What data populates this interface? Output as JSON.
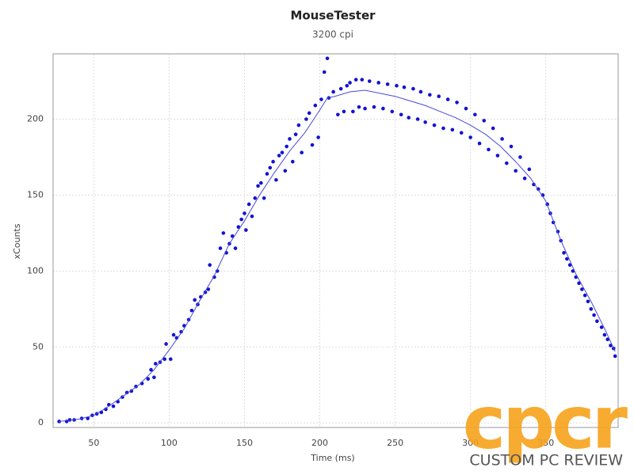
{
  "chart_data": {
    "type": "scatter",
    "title": "MouseTester",
    "subtitle": "3200 cpi",
    "x_label": "Time (ms)",
    "y_label": "xCounts",
    "xlim": [
      23,
      398
    ],
    "ylim": [
      -3,
      243
    ],
    "xticks": [
      50,
      100,
      150,
      200,
      250,
      300,
      350
    ],
    "yticks": [
      0,
      50,
      100,
      150,
      200
    ],
    "grid": true,
    "series": [
      {
        "type": "scatter",
        "color": "#1212d4",
        "x": [
          27,
          32,
          34,
          37,
          42,
          46,
          49,
          52,
          55,
          58,
          60,
          63,
          66,
          69,
          72,
          75,
          78,
          82,
          86,
          88,
          90,
          91,
          94,
          97,
          98,
          101,
          103,
          105,
          108,
          110,
          113,
          115,
          117,
          119,
          121,
          124,
          126,
          127,
          130,
          132,
          134,
          136,
          138,
          140,
          142,
          144,
          146,
          148,
          150,
          151,
          153,
          155,
          157,
          159,
          161,
          163,
          165,
          167,
          169,
          171,
          173,
          175,
          177,
          178,
          180,
          182,
          184,
          186,
          188,
          191,
          193,
          195,
          197,
          199,
          201,
          203,
          205,
          206,
          209,
          212,
          214,
          216,
          218,
          220,
          222,
          224,
          226,
          228,
          230,
          233,
          236,
          239,
          242,
          245,
          248,
          251,
          254,
          256,
          259,
          262,
          265,
          267,
          270,
          273,
          276,
          279,
          282,
          285,
          288,
          291,
          294,
          297,
          300,
          303,
          306,
          309,
          312,
          315,
          318,
          321,
          324,
          327,
          330,
          333,
          336,
          339,
          342,
          345,
          348,
          351,
          353,
          355,
          358,
          360,
          362,
          364,
          366,
          368,
          370,
          372,
          374,
          376,
          378,
          380,
          382,
          384,
          387,
          389,
          391,
          393,
          395,
          396
        ],
        "values": [
          1,
          1,
          2,
          2,
          3,
          3,
          5,
          6,
          7,
          9,
          12,
          11,
          14,
          17,
          20,
          21,
          24,
          26,
          29,
          35,
          30,
          39,
          40,
          42,
          52,
          42,
          58,
          56,
          60,
          64,
          68,
          74,
          81,
          78,
          83,
          86,
          88,
          104,
          96,
          100,
          115,
          125,
          112,
          118,
          123,
          115,
          129,
          134,
          138,
          127,
          144,
          136,
          148,
          156,
          158,
          148,
          164,
          168,
          172,
          160,
          176,
          178,
          166,
          182,
          187,
          172,
          190,
          196,
          178,
          200,
          204,
          183,
          209,
          188,
          213,
          231,
          240,
          214,
          218,
          203,
          220,
          205,
          222,
          224,
          205,
          226,
          208,
          226,
          207,
          225,
          208,
          224,
          207,
          223,
          205,
          222,
          203,
          221,
          201,
          220,
          200,
          218,
          198,
          216,
          196,
          215,
          194,
          213,
          193,
          211,
          191,
          207,
          188,
          203,
          184,
          199,
          180,
          194,
          176,
          187,
          171,
          182,
          166,
          175,
          161,
          167,
          157,
          154,
          150,
          144,
          138,
          132,
          126,
          120,
          112,
          108,
          104,
          100,
          96,
          92,
          88,
          84,
          80,
          75,
          71,
          67,
          63,
          58,
          55,
          51,
          49,
          44
        ]
      },
      {
        "type": "line",
        "color": "#4a4ad8",
        "x": [
          27,
          40,
          50,
          60,
          70,
          80,
          90,
          100,
          110,
          120,
          130,
          140,
          150,
          160,
          170,
          180,
          190,
          200,
          205,
          210,
          220,
          230,
          240,
          250,
          260,
          270,
          280,
          290,
          300,
          310,
          320,
          330,
          340,
          350,
          360,
          370,
          380,
          390,
          396
        ],
        "values": [
          1,
          2.5,
          5,
          11,
          18,
          25,
          35,
          48,
          62,
          80,
          97,
          118,
          133,
          150,
          165,
          179,
          191,
          206,
          214,
          215,
          218,
          219,
          217,
          215,
          212,
          209,
          205,
          201,
          196,
          190,
          182,
          172,
          161,
          146,
          120,
          98,
          80,
          60,
          47
        ]
      }
    ],
    "watermark": "cpcr",
    "watermark_caption": "CUSTOM PC REVIEW"
  }
}
